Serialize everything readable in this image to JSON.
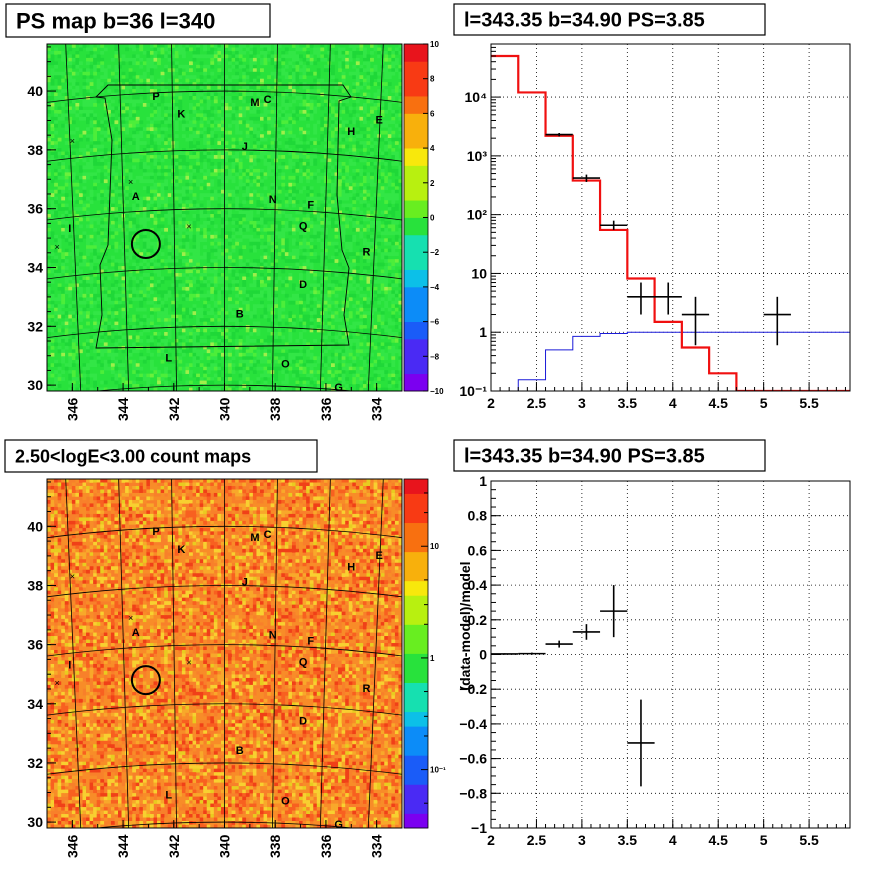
{
  "chart_data": [
    {
      "type": "heatmap",
      "title": "PS map b=36 l=340",
      "xlim": [
        347,
        333
      ],
      "ylim": [
        29.8,
        41.6
      ],
      "x_ticks": [
        "346",
        "344",
        "342",
        "340",
        "338",
        "336",
        "334"
      ],
      "y_ticks": [
        "30",
        "32",
        "34",
        "36",
        "38",
        "40"
      ],
      "colorbar": {
        "min": -10,
        "max": 10,
        "scale": "linear",
        "ticks": [
          "-10",
          "-8",
          "-6",
          "-4",
          "-2",
          "0",
          "2",
          "4",
          "6",
          "8",
          "10"
        ]
      },
      "base_color": "#28e23c",
      "region_labels": [
        {
          "t": "P",
          "l": 342.7,
          "b": 39.7
        },
        {
          "t": "K",
          "l": 341.7,
          "b": 39.1
        },
        {
          "t": "M",
          "l": 338.8,
          "b": 39.5
        },
        {
          "t": "C",
          "l": 338.3,
          "b": 39.6
        },
        {
          "t": "J",
          "l": 339.2,
          "b": 38.0
        },
        {
          "t": "H",
          "l": 335.0,
          "b": 38.5
        },
        {
          "t": "E",
          "l": 333.9,
          "b": 38.9
        },
        {
          "t": "A",
          "l": 343.5,
          "b": 36.3
        },
        {
          "t": "N",
          "l": 338.1,
          "b": 36.2
        },
        {
          "t": "F",
          "l": 336.6,
          "b": 36.0
        },
        {
          "t": "Q",
          "l": 336.9,
          "b": 35.3
        },
        {
          "t": "I",
          "l": 346.1,
          "b": 35.2
        },
        {
          "t": "R",
          "l": 334.4,
          "b": 34.4
        },
        {
          "t": "D",
          "l": 336.9,
          "b": 33.3
        },
        {
          "t": "B",
          "l": 339.4,
          "b": 32.3
        },
        {
          "t": "L",
          "l": 342.2,
          "b": 30.8
        },
        {
          "t": "O",
          "l": 337.6,
          "b": 30.6
        },
        {
          "t": "G",
          "l": 335.5,
          "b": 29.8
        }
      ],
      "markers_x": [
        {
          "l": 346.0,
          "b": 38.3
        },
        {
          "l": 343.7,
          "b": 36.9
        },
        {
          "l": 346.6,
          "b": 34.7
        },
        {
          "l": 341.4,
          "b": 35.4
        }
      ],
      "circle": {
        "l": 343.1,
        "b": 34.8
      }
    },
    {
      "type": "line",
      "title": "l=343.35 b=34.90 PS=3.85",
      "xlim": [
        2,
        5.95
      ],
      "ylim": [
        0.1,
        80000
      ],
      "yscale": "log",
      "x_ticks": [
        "2",
        "2.5",
        "3",
        "3.5",
        "4",
        "4.5",
        "5",
        "5.5"
      ],
      "y_ticks": [
        "10⁻¹",
        "1",
        "10",
        "10²",
        "10³",
        "10⁴"
      ],
      "model_red": [
        {
          "x0": 2.0,
          "x1": 2.3,
          "y": 50000
        },
        {
          "x0": 2.3,
          "x1": 2.6,
          "y": 12000
        },
        {
          "x0": 2.6,
          "x1": 2.9,
          "y": 2200
        },
        {
          "x0": 2.9,
          "x1": 3.2,
          "y": 380
        },
        {
          "x0": 3.2,
          "x1": 3.5,
          "y": 55
        },
        {
          "x0": 3.5,
          "x1": 3.8,
          "y": 8.2
        },
        {
          "x0": 3.8,
          "x1": 4.1,
          "y": 1.5
        },
        {
          "x0": 4.1,
          "x1": 4.4,
          "y": 0.55
        },
        {
          "x0": 4.4,
          "x1": 4.7,
          "y": 0.2
        },
        {
          "x0": 4.7,
          "x1": 5.95,
          "y": 0.1
        }
      ],
      "model_blue": [
        {
          "x0": 2.0,
          "x1": 2.3,
          "y": 0.08
        },
        {
          "x0": 2.3,
          "x1": 2.6,
          "y": 0.155
        },
        {
          "x0": 2.6,
          "x1": 2.9,
          "y": 0.5
        },
        {
          "x0": 2.9,
          "x1": 3.2,
          "y": 0.85
        },
        {
          "x0": 3.2,
          "x1": 3.5,
          "y": 0.95
        },
        {
          "x0": 3.5,
          "x1": 5.95,
          "y": 1.0
        }
      ],
      "data_points": [
        {
          "x": 2.75,
          "y": 2300,
          "ex": 0.15,
          "ey_lo": 2150,
          "ey_hi": 2450
        },
        {
          "x": 3.05,
          "y": 420,
          "ex": 0.15,
          "ey_lo": 360,
          "ey_hi": 480
        },
        {
          "x": 3.35,
          "y": 66,
          "ex": 0.15,
          "ey_lo": 55,
          "ey_hi": 79
        },
        {
          "x": 3.65,
          "y": 4,
          "ex": 0.15,
          "ey_lo": 2,
          "ey_hi": 7
        },
        {
          "x": 3.95,
          "y": 4,
          "ex": 0.15,
          "ey_lo": 2,
          "ey_hi": 7
        },
        {
          "x": 4.25,
          "y": 2,
          "ex": 0.15,
          "ey_lo": 0.6,
          "ey_hi": 4
        },
        {
          "x": 5.15,
          "y": 2,
          "ex": 0.15,
          "ey_lo": 0.6,
          "ey_hi": 4
        }
      ]
    },
    {
      "type": "heatmap",
      "title": "2.50<logE<3.00 count maps",
      "xlim": [
        347,
        333
      ],
      "ylim": [
        29.8,
        41.6
      ],
      "x_ticks": [
        "346",
        "344",
        "342",
        "340",
        "338",
        "336",
        "334"
      ],
      "y_ticks": [
        "30",
        "32",
        "34",
        "36",
        "38",
        "40"
      ],
      "colorbar": {
        "scale": "log",
        "ticks": [
          "10⁻¹",
          "1",
          "10"
        ]
      },
      "base_color": "#f8802a"
    },
    {
      "type": "scatter",
      "title": "l=343.35 b=34.90 PS=3.85",
      "ylabel": "(data-model)/model",
      "xlim": [
        2,
        5.95
      ],
      "ylim": [
        -1,
        1
      ],
      "x_ticks": [
        "2",
        "2.5",
        "3",
        "3.5",
        "4",
        "4.5",
        "5",
        "5.5"
      ],
      "y_ticks": [
        "−1",
        "−0.8",
        "−0.6",
        "−0.4",
        "−0.2",
        "0",
        "0.2",
        "0.4",
        "0.6",
        "0.8",
        "1"
      ],
      "data_points": [
        {
          "x": 2.15,
          "y": 0.003,
          "ex": 0.15,
          "ey": 0.004
        },
        {
          "x": 2.45,
          "y": 0.005,
          "ex": 0.15,
          "ey": 0.006
        },
        {
          "x": 2.75,
          "y": 0.06,
          "ex": 0.15,
          "ey": 0.02
        },
        {
          "x": 3.05,
          "y": 0.13,
          "ex": 0.15,
          "ey": 0.045
        },
        {
          "x": 3.35,
          "y": 0.25,
          "ex": 0.15,
          "ey": 0.15
        },
        {
          "x": 3.65,
          "y": -0.51,
          "ex": 0.15,
          "ey": 0.25
        }
      ]
    }
  ]
}
